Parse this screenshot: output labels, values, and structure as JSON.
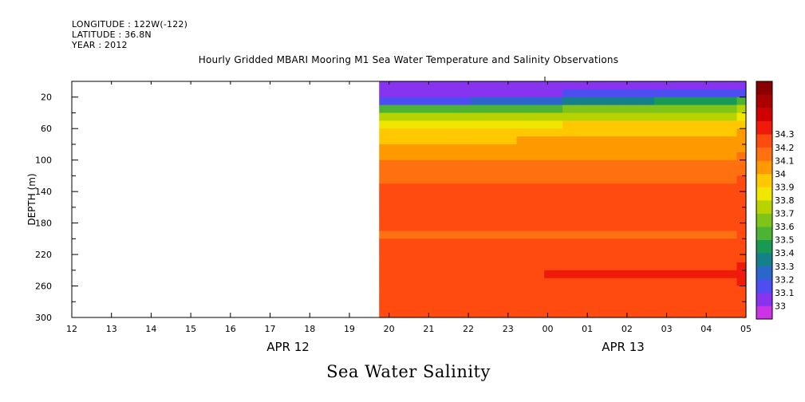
{
  "header": {
    "longitude": "LONGITUDE : 122W(-122)",
    "latitude": "LATITUDE : 36.8N",
    "year": "YEAR : 2012"
  },
  "title": "Hourly Gridded MBARI Mooring M1 Sea Water Temperature and Salinity Observations",
  "caption": "Sea Water Salinity",
  "chart_data": {
    "type": "heatmap",
    "title": "Hourly Gridded MBARI Mooring M1 Sea Water Temperature and Salinity Observations",
    "xlabel": "",
    "ylabel": "DEPTH (m)",
    "x_tick_labels": [
      "12",
      "13",
      "14",
      "15",
      "16",
      "17",
      "18",
      "19",
      "20",
      "21",
      "22",
      "23",
      "00",
      "01",
      "02",
      "03",
      "04",
      "05"
    ],
    "x_group_labels": [
      "APR 12",
      "APR 13"
    ],
    "y_tick_labels": [
      "20",
      "60",
      "100",
      "140",
      "180",
      "220",
      "260",
      "300"
    ],
    "y_ticks": [
      20,
      60,
      100,
      140,
      180,
      220,
      260,
      300
    ],
    "ylim": [
      300,
      0
    ],
    "y_reversed": true,
    "data_start_hour": "APR 12 19:45",
    "colorbar": {
      "levels": [
        "33",
        "33.1",
        "33.2",
        "33.3",
        "33.4",
        "33.5",
        "33.6",
        "33.7",
        "33.8",
        "33.9",
        "34",
        "34.1",
        "34.2",
        "34.3"
      ],
      "colors": [
        "#cc33e6",
        "#8833f0",
        "#4d4df2",
        "#2a66cc",
        "#15808c",
        "#1a9955",
        "#4db333",
        "#80c41a",
        "#b8d400",
        "#f0e600",
        "#ffc800",
        "#ff9900",
        "#ff7010",
        "#ff4a10",
        "#f01a0a",
        "#d10000",
        "#aa0000",
        "#8a0000"
      ]
    },
    "depth_profile": {
      "depths": [
        5,
        15,
        25,
        35,
        45,
        55,
        65,
        75,
        85,
        95,
        105,
        115,
        125,
        135,
        145,
        155,
        165,
        175,
        185,
        195,
        205,
        215,
        225,
        235,
        245,
        255,
        265,
        275,
        285,
        295
      ],
      "salinity_start": [
        33.05,
        33.05,
        33.1,
        33.5,
        33.75,
        33.85,
        33.92,
        33.97,
        34.0,
        34.05,
        34.1,
        34.12,
        34.15,
        34.2,
        34.2,
        34.2,
        34.2,
        34.2,
        34.2,
        34.18,
        34.2,
        34.22,
        34.24,
        34.26,
        34.27,
        34.27,
        34.26,
        34.24,
        34.22,
        34.21
      ],
      "salinity_end": [
        33.05,
        33.15,
        33.5,
        33.7,
        33.8,
        33.95,
        34.0,
        34.05,
        34.08,
        34.1,
        34.12,
        34.15,
        34.2,
        34.2,
        34.22,
        34.2,
        34.2,
        34.2,
        34.2,
        34.2,
        34.2,
        34.22,
        34.25,
        34.28,
        34.3,
        34.28,
        34.26,
        34.25,
        34.23,
        34.2
      ]
    }
  }
}
